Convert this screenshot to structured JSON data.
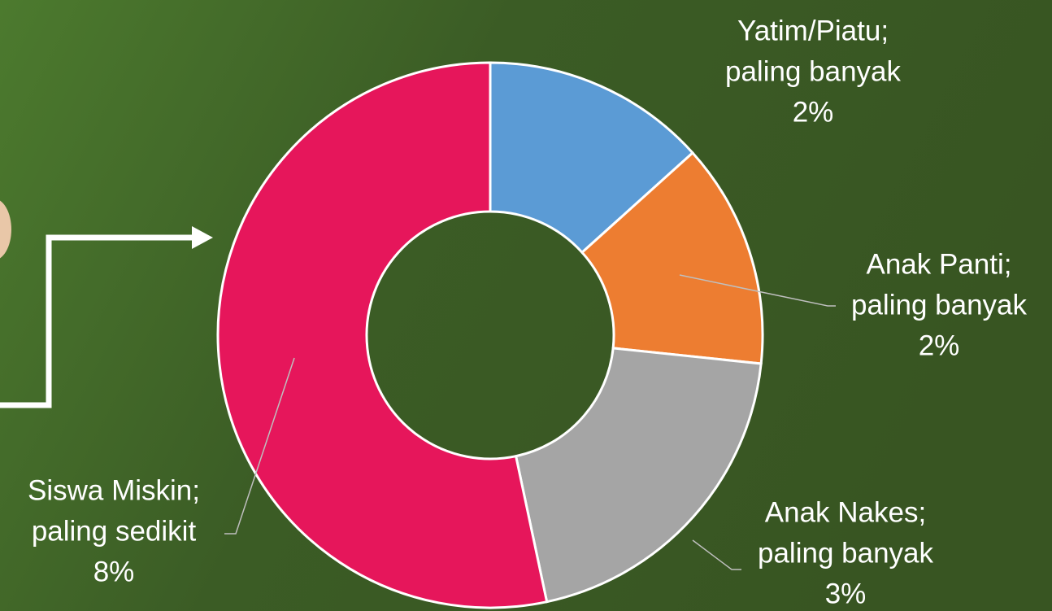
{
  "chart_data": {
    "type": "donut",
    "categories": [
      "Yatim/Piatu;",
      "Anak Panti;",
      "Anak Nakes;",
      "Siswa Miskin;"
    ],
    "descriptions": [
      "paling banyak",
      "paling banyak",
      "paling banyak",
      "paling sedikit"
    ],
    "values": [
      2,
      2,
      3,
      8
    ],
    "value_labels": [
      "2%",
      "2%",
      "3%",
      "8%"
    ],
    "colors": [
      "#5b9bd5",
      "#ed7d31",
      "#a5a5a5",
      "#e6165b"
    ]
  }
}
